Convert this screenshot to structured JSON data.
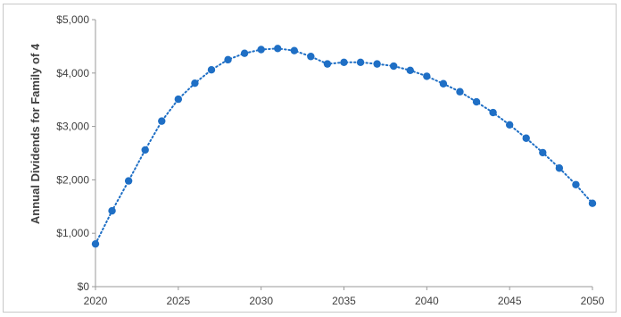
{
  "chart_data": {
    "type": "line",
    "title": "",
    "xlabel": "",
    "ylabel": "Annual Dividends for Family of 4",
    "xlim": [
      2020,
      2050
    ],
    "ylim": [
      0,
      5000
    ],
    "x_ticks": [
      2020,
      2025,
      2030,
      2035,
      2040,
      2045,
      2050
    ],
    "x_tick_labels": [
      "2020",
      "2025",
      "2030",
      "2035",
      "2040",
      "2045",
      "2050"
    ],
    "y_ticks": [
      0,
      1000,
      2000,
      3000,
      4000,
      5000
    ],
    "y_tick_labels": [
      "$0",
      "$1,000",
      "$2,000",
      "$3,000",
      "$4,000",
      "$5,000"
    ],
    "grid": false,
    "legend": "none",
    "line_style": "dotted",
    "color": "#1f6fc5",
    "series": [
      {
        "x": [
          2020,
          2021,
          2022,
          2023,
          2024,
          2025,
          2026,
          2027,
          2028,
          2029,
          2030,
          2031,
          2032,
          2033,
          2034,
          2035,
          2036,
          2037,
          2038,
          2039,
          2040,
          2041,
          2042,
          2043,
          2044,
          2045,
          2046,
          2047,
          2048,
          2049,
          2050
        ],
        "values": [
          800,
          1420,
          1980,
          2560,
          3100,
          3510,
          3810,
          4060,
          4250,
          4370,
          4440,
          4460,
          4420,
          4310,
          4170,
          4200,
          4200,
          4170,
          4130,
          4050,
          3940,
          3800,
          3650,
          3460,
          3260,
          3030,
          2780,
          2510,
          2220,
          1910,
          1560
        ]
      }
    ]
  }
}
